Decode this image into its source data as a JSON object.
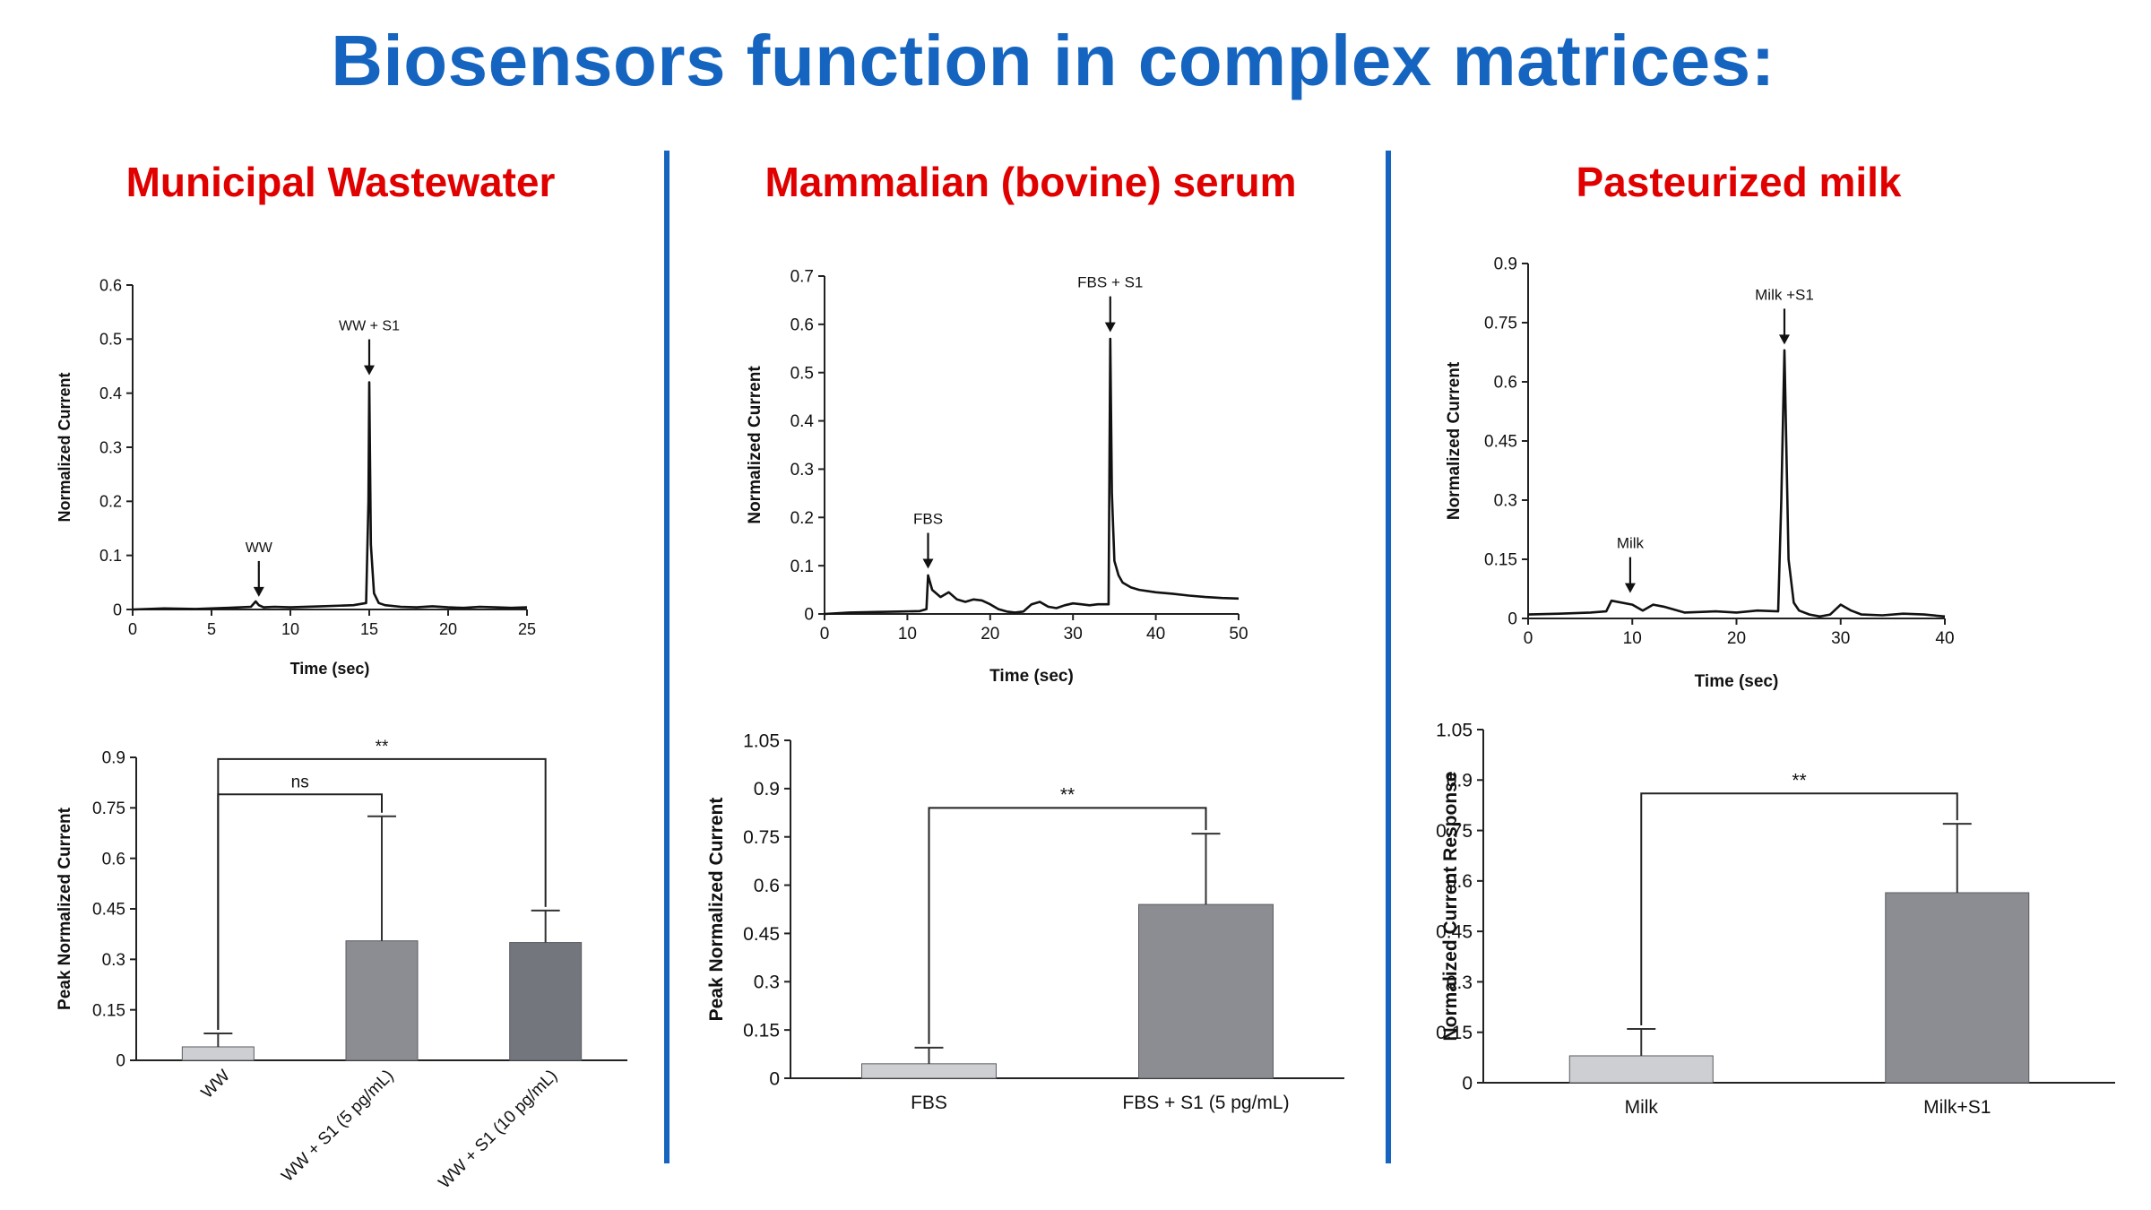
{
  "title": "Biosensors function in complex matrices:",
  "panels": [
    {
      "title": "Municipal Wastewater"
    },
    {
      "title": "Mammalian (bovine) serum"
    },
    {
      "title": "Pasteurized milk"
    }
  ],
  "colors": {
    "title": "#1565c0",
    "panel_title": "#e00000",
    "divider": "#1565c0"
  },
  "chart_data": [
    {
      "id": "ww-trace",
      "type": "line",
      "xlabel": "Time (sec)",
      "ylabel": "Normalized Current",
      "xlim": [
        0,
        25
      ],
      "ylim": [
        0,
        0.6
      ],
      "xticks": [
        0,
        5,
        10,
        15,
        20,
        25
      ],
      "yticks": [
        0,
        0.1,
        0.2,
        0.3,
        0.4,
        0.5,
        0.6
      ],
      "ytick_labels": [
        "0",
        "0.1",
        "0.2",
        "0.3",
        "0.4",
        "0.5",
        "0.6"
      ],
      "x": [
        0,
        2,
        4,
        6,
        7.5,
        7.8,
        8,
        8.3,
        9,
        10,
        12,
        14,
        14.8,
        14.95,
        15,
        15.1,
        15.3,
        15.6,
        16,
        17,
        18,
        19,
        20,
        21,
        22,
        23,
        24,
        25
      ],
      "y": [
        0,
        0.002,
        0.001,
        0.003,
        0.005,
        0.015,
        0.008,
        0.004,
        0.005,
        0.004,
        0.006,
        0.008,
        0.012,
        0.2,
        0.42,
        0.12,
        0.03,
        0.012,
        0.008,
        0.005,
        0.004,
        0.006,
        0.004,
        0.003,
        0.005,
        0.004,
        0.003,
        0.004
      ],
      "annotations": [
        {
          "label": "WW",
          "x": 8,
          "y": 0.02
        },
        {
          "label": "WW + S1",
          "x": 15,
          "y": 0.43
        }
      ]
    },
    {
      "id": "fbs-trace",
      "type": "line",
      "xlabel": "Time (sec)",
      "ylabel": "Normalized Current",
      "xlim": [
        0,
        50
      ],
      "ylim": [
        0,
        0.7
      ],
      "xticks": [
        0,
        10,
        20,
        30,
        40,
        50
      ],
      "yticks": [
        0,
        0.1,
        0.2,
        0.3,
        0.4,
        0.5,
        0.6,
        0.7
      ],
      "ytick_labels": [
        "0",
        "0.1",
        "0.2",
        "0.3",
        "0.4",
        "0.5",
        "0.6",
        "0.7"
      ],
      "x": [
        0,
        3,
        6,
        9,
        11.5,
        12.3,
        12.5,
        13,
        14,
        15,
        16,
        17,
        18,
        19,
        20,
        21,
        22,
        23,
        24,
        25,
        26,
        27,
        28,
        29,
        30,
        31,
        32,
        33,
        34.3,
        34.5,
        34.7,
        35,
        35.5,
        36,
        37,
        38,
        40,
        42,
        44,
        46,
        48,
        50
      ],
      "y": [
        0,
        0.003,
        0.004,
        0.005,
        0.006,
        0.01,
        0.08,
        0.05,
        0.035,
        0.045,
        0.03,
        0.025,
        0.03,
        0.028,
        0.02,
        0.01,
        0.005,
        0.003,
        0.005,
        0.02,
        0.025,
        0.015,
        0.012,
        0.018,
        0.022,
        0.02,
        0.018,
        0.02,
        0.02,
        0.57,
        0.25,
        0.11,
        0.08,
        0.065,
        0.055,
        0.05,
        0.045,
        0.042,
        0.038,
        0.035,
        0.033,
        0.032
      ],
      "annotations": [
        {
          "label": "FBS",
          "x": 12.5,
          "y": 0.09
        },
        {
          "label": "FBS + S1",
          "x": 34.5,
          "y": 0.58
        }
      ]
    },
    {
      "id": "milk-trace",
      "type": "line",
      "xlabel": "Time (sec)",
      "ylabel": "Normalized Current",
      "xlim": [
        0,
        40
      ],
      "ylim": [
        0,
        0.9
      ],
      "xticks": [
        0,
        10,
        20,
        30,
        40
      ],
      "yticks": [
        0,
        0.15,
        0.3,
        0.45,
        0.6,
        0.75,
        0.9
      ],
      "ytick_labels": [
        "0",
        "0.15",
        "0.3",
        "0.45",
        "0.6",
        "0.75",
        "0.9"
      ],
      "x": [
        0,
        3,
        6,
        7.5,
        8,
        10,
        11,
        12,
        13,
        15,
        18,
        20,
        22,
        24,
        24.3,
        24.6,
        25,
        25.5,
        26,
        27,
        28,
        29,
        30,
        31,
        32,
        34,
        36,
        38,
        40
      ],
      "y": [
        0.01,
        0.012,
        0.015,
        0.018,
        0.045,
        0.035,
        0.02,
        0.035,
        0.03,
        0.015,
        0.018,
        0.015,
        0.02,
        0.018,
        0.3,
        0.68,
        0.15,
        0.04,
        0.02,
        0.01,
        0.005,
        0.01,
        0.035,
        0.02,
        0.01,
        0.008,
        0.012,
        0.01,
        0.005
      ],
      "annotations": [
        {
          "label": "Milk",
          "x": 9.8,
          "y": 0.06
        },
        {
          "label": "Milk +S1",
          "x": 24.6,
          "y": 0.69
        }
      ]
    },
    {
      "id": "ww-bars",
      "type": "bar",
      "ylabel": "Peak Normalized Current",
      "ylim": [
        0,
        0.9
      ],
      "yticks": [
        0,
        0.15,
        0.3,
        0.45,
        0.6,
        0.75,
        0.9
      ],
      "ytick_labels": [
        "0",
        "0.15",
        "0.3",
        "0.45",
        "0.6",
        "0.75",
        "0.9"
      ],
      "categories": [
        "WW",
        "WW + S1 (5 pg/mL)",
        "WW + S1 (10 pg/mL)"
      ],
      "values": [
        0.04,
        0.355,
        0.35
      ],
      "errors": [
        0.04,
        0.37,
        0.095
      ],
      "bar_colors": [
        "#cdcfd2",
        "#8b8d93",
        "#74767d"
      ],
      "significance": [
        {
          "from": 0,
          "to": 1,
          "label": "ns",
          "y": 0.79
        },
        {
          "from": 0,
          "to": 2,
          "label": "**",
          "y": 0.895
        }
      ]
    },
    {
      "id": "fbs-bars",
      "type": "bar",
      "ylabel": "Peak Normalized Current",
      "ylim": [
        0,
        1.05
      ],
      "yticks": [
        0,
        0.15,
        0.3,
        0.45,
        0.6,
        0.75,
        0.9,
        1.05
      ],
      "ytick_labels": [
        "0",
        "0.15",
        "0.3",
        "0.45",
        "0.6",
        "0.75",
        "0.9",
        "1.05"
      ],
      "categories": [
        "FBS",
        "FBS + S1 (5 pg/mL)"
      ],
      "values": [
        0.045,
        0.54
      ],
      "errors": [
        0.05,
        0.22
      ],
      "bar_colors": [
        "#cdcfd2",
        "#8b8d93"
      ],
      "significance": [
        {
          "from": 0,
          "to": 1,
          "label": "**",
          "y": 0.84
        }
      ]
    },
    {
      "id": "milk-bars",
      "type": "bar",
      "ylabel": "Normalized Current Response",
      "ylim": [
        0,
        1.05
      ],
      "yticks": [
        0,
        0.15,
        0.3,
        0.45,
        0.6,
        0.75,
        0.9,
        1.05
      ],
      "ytick_labels": [
        "0",
        "0.15",
        "0.3",
        "0.45",
        "0.6",
        "0.75",
        "0.9",
        "1.05"
      ],
      "categories": [
        "Milk",
        "Milk+S1"
      ],
      "values": [
        0.08,
        0.565
      ],
      "errors": [
        0.08,
        0.205
      ],
      "bar_colors": [
        "#cdcfd2",
        "#8b8d93"
      ],
      "significance": [
        {
          "from": 0,
          "to": 1,
          "label": "**",
          "y": 0.86
        }
      ]
    }
  ]
}
